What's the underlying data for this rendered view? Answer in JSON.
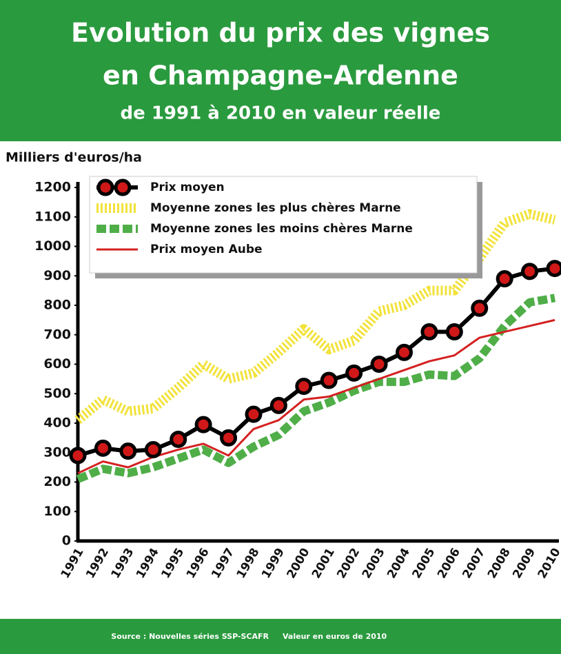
{
  "chart_data": {
    "type": "line",
    "title": [
      "Evolution du prix des vignes",
      "en Champagne-Ardenne"
    ],
    "subtitle": "de 1991 à 2010 en valeur réelle",
    "ylabel": "Milliers d'euros/ha",
    "categories": [
      "1991",
      "1992",
      "1993",
      "1994",
      "1995",
      "1996",
      "1997",
      "1998",
      "1999",
      "2000",
      "2001",
      "2002",
      "2003",
      "2004",
      "2005",
      "2006",
      "2007",
      "2008",
      "2009",
      "2010"
    ],
    "series": [
      {
        "name": "Prix moyen",
        "color": "#d01818",
        "line_style": "markers",
        "values": [
          290,
          315,
          305,
          310,
          345,
          395,
          350,
          430,
          460,
          525,
          545,
          570,
          600,
          640,
          710,
          710,
          790,
          890,
          915,
          925
        ]
      },
      {
        "name": "Moyenne zones les plus chères Marne",
        "color": "#f2e23a",
        "line_style": "dotted",
        "values": [
          410,
          480,
          440,
          450,
          520,
          600,
          550,
          570,
          640,
          720,
          650,
          680,
          780,
          800,
          850,
          850,
          960,
          1080,
          1110,
          1090
        ]
      },
      {
        "name": "Moyenne zones les moins chères Marne",
        "color": "#4fae48",
        "line_style": "dashed",
        "values": [
          210,
          245,
          230,
          250,
          280,
          310,
          265,
          320,
          360,
          440,
          470,
          510,
          540,
          540,
          565,
          560,
          620,
          730,
          810,
          825
        ]
      },
      {
        "name": "Prix moyen Aube",
        "color": "#d42020",
        "line_style": "solid",
        "values": [
          230,
          270,
          250,
          285,
          310,
          330,
          290,
          380,
          410,
          480,
          490,
          520,
          550,
          580,
          610,
          630,
          690,
          710,
          730,
          750
        ]
      }
    ],
    "ylim": [
      0,
      1200
    ],
    "yticks": [
      0,
      100,
      200,
      300,
      400,
      500,
      600,
      700,
      800,
      900,
      1000,
      1100,
      1200
    ],
    "source": "Source : Nouvelles séries SSP-SCAFR",
    "note": "Valeur en euros de 2010"
  }
}
